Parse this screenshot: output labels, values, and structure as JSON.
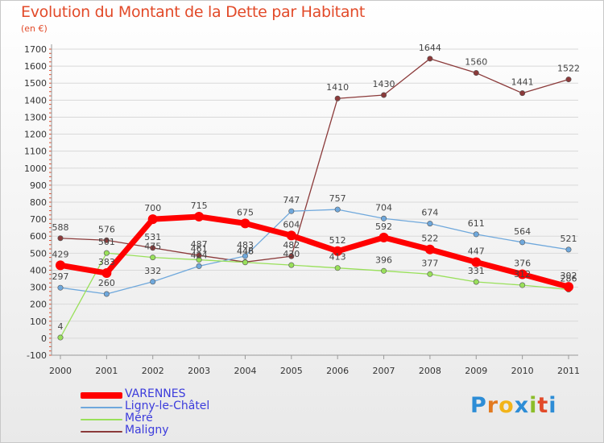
{
  "header": {
    "title": "Evolution du Montant de la Dette par Habitant",
    "subtitle": "(en €)"
  },
  "logo": {
    "letters": [
      "P",
      "r",
      "o",
      "x",
      "i",
      "t",
      "i"
    ]
  },
  "chart_data": {
    "type": "line",
    "title": "Evolution du Montant de la Dette par Habitant",
    "subtitle": "(en €)",
    "xlabel": "",
    "ylabel": "",
    "x": [
      "2000",
      "2001",
      "2002",
      "2003",
      "2004",
      "2005",
      "2006",
      "2007",
      "2008",
      "2009",
      "2010",
      "2011"
    ],
    "ylim": [
      -100,
      1700
    ],
    "yticks": [
      -100,
      0,
      100,
      200,
      300,
      400,
      500,
      600,
      700,
      800,
      900,
      1000,
      1100,
      1200,
      1300,
      1400,
      1500,
      1600,
      1700
    ],
    "grid": true,
    "legend_position": "bottom-left",
    "series": [
      {
        "name": "VARENNES",
        "color": "#ff0000",
        "values": [
          429,
          383,
          700,
          715,
          675,
          604,
          512,
          592,
          522,
          447,
          376,
          302
        ]
      },
      {
        "name": "Ligny-le-Châtel",
        "color": "#6fa8dc",
        "values": [
          297,
          260,
          332,
          424,
          483,
          747,
          757,
          704,
          674,
          611,
          564,
          521
        ]
      },
      {
        "name": "Méré",
        "color": "#99e05a",
        "values": [
          4,
          501,
          475,
          461,
          446,
          430,
          413,
          396,
          377,
          331,
          312,
          286
        ]
      },
      {
        "name": "Maligny",
        "color": "#8b3a3a",
        "values": [
          588,
          576,
          531,
          487,
          448,
          482,
          1410,
          1430,
          1644,
          1560,
          1441,
          1522
        ]
      }
    ]
  }
}
